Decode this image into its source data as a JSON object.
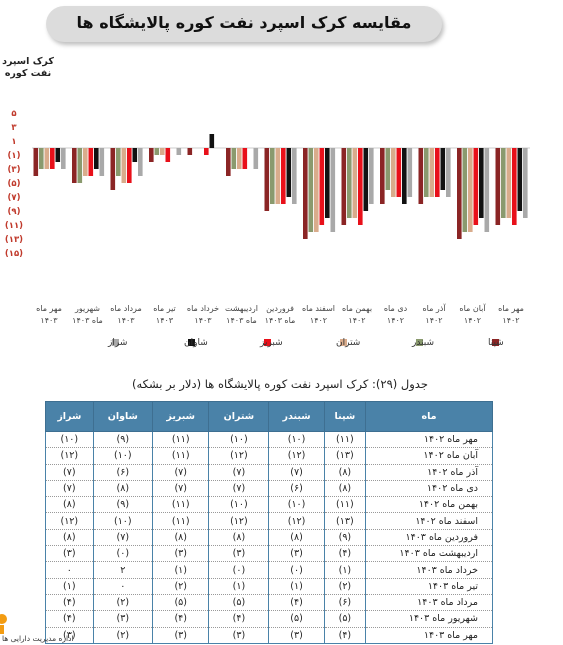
{
  "page_title": "مقایسه کرک اسپرد نفت کوره پالایشگاه ها",
  "chart_data": {
    "type": "bar",
    "ylabel": "کرک اسپرد نفت کوره",
    "ylim": [
      -15,
      5
    ],
    "yticks": [
      5,
      3,
      1,
      -1,
      -3,
      -5,
      -7,
      -9,
      -11,
      -13,
      -15
    ],
    "ytick_labels": [
      "۵",
      "۳",
      "۱",
      "(۱)",
      "(۳)",
      "(۵)",
      "(۷)",
      "(۹)",
      "(۱۱)",
      "(۱۳)",
      "(۱۵)"
    ],
    "categories": [
      "مهر ماه ۱۴۰۲",
      "آبان ماه ۱۴۰۲",
      "آذر ماه ۱۴۰۲",
      "دی ماه ۱۴۰۲",
      "بهمن ماه ۱۴۰۲",
      "اسفند ماه ۱۴۰۲",
      "فروردین ماه ۱۴۰۳",
      "اردیبهشت ماه ۱۴۰۳",
      "خرداد ماه ۱۴۰۳",
      "تیر ماه ۱۴۰۳",
      "مرداد ماه ۱۴۰۳",
      "شهریور ماه ۱۴۰۳",
      "مهر ماه ۱۴۰۳"
    ],
    "category_labels": [
      [
        "مهر ماه",
        "۱۴۰۲"
      ],
      [
        "آبان ماه",
        "۱۴۰۲"
      ],
      [
        "آذر ماه",
        "۱۴۰۲"
      ],
      [
        "دی ماه",
        "۱۴۰۲"
      ],
      [
        "بهمن ماه",
        "۱۴۰۲"
      ],
      [
        "اسفند ماه",
        "۱۴۰۲"
      ],
      [
        "فروردین",
        "ماه ۱۴۰۳"
      ],
      [
        "اردیبهشت",
        "ماه ۱۴۰۳"
      ],
      [
        "خرداد ماه",
        "۱۴۰۳"
      ],
      [
        "تیر ماه",
        "۱۴۰۳"
      ],
      [
        "مرداد ماه",
        "۱۴۰۳"
      ],
      [
        "شهریور",
        "ماه ۱۴۰۳"
      ],
      [
        "مهر ماه",
        "۱۴۰۳"
      ]
    ],
    "series": [
      {
        "name": "شپنا",
        "color": "#8b2525",
        "values": [
          -11,
          -13,
          -8,
          -8,
          -11,
          -13,
          -9,
          -4,
          -1,
          -2,
          -6,
          -5,
          -4
        ]
      },
      {
        "name": "شبندر",
        "color": "#8a9a6e",
        "values": [
          -10,
          -12,
          -7,
          -6,
          -10,
          -12,
          -8,
          -3,
          0,
          -1,
          -4,
          -5,
          -3
        ]
      },
      {
        "name": "شتران",
        "color": "#d9ac8c",
        "values": [
          -10,
          -12,
          -7,
          -7,
          -10,
          -12,
          -8,
          -3,
          0,
          -1,
          -5,
          -4,
          -3
        ]
      },
      {
        "name": "شبریز",
        "color": "#e8101a",
        "values": [
          -11,
          -11,
          -7,
          -7,
          -11,
          -11,
          -8,
          -3,
          -1,
          -2,
          -5,
          -4,
          -3
        ]
      },
      {
        "name": "شاوان",
        "color": "#111111",
        "values": [
          -9,
          -10,
          -6,
          -8,
          -9,
          -10,
          -7,
          0,
          2,
          0,
          -2,
          -3,
          -2
        ]
      },
      {
        "name": "شراز",
        "color": "#a9a9a9",
        "values": [
          -10,
          -12,
          -7,
          -7,
          -8,
          -12,
          -8,
          -3,
          0,
          -1,
          -4,
          -4,
          -3
        ]
      }
    ],
    "legend": "bottom",
    "grid": false
  },
  "table": {
    "caption": "جدول (۲۹): کرک اسپرد نفت کوره پالایشگاه ها (دلار بر بشکه)",
    "headers": [
      "ماه",
      "شپنا",
      "شبندر",
      "شتران",
      "شبریز",
      "شاوان",
      "شراز"
    ],
    "rows": [
      [
        "مهر ماه ۱۴۰۲",
        "(۱۱)",
        "(۱۰)",
        "(۱۰)",
        "(۱۱)",
        "(۹)",
        "(۱۰)"
      ],
      [
        "آبان ماه ۱۴۰۲",
        "(۱۳)",
        "(۱۲)",
        "(۱۲)",
        "(۱۱)",
        "(۱۰)",
        "(۱۲)"
      ],
      [
        "آذر ماه ۱۴۰۲",
        "(۸)",
        "(۷)",
        "(۷)",
        "(۷)",
        "(۶)",
        "(۷)"
      ],
      [
        "دی ماه ۱۴۰۲",
        "(۸)",
        "(۶)",
        "(۷)",
        "(۷)",
        "(۸)",
        "(۷)"
      ],
      [
        "بهمن ماه ۱۴۰۲",
        "(۱۱)",
        "(۱۰)",
        "(۱۰)",
        "(۱۱)",
        "(۹)",
        "(۸)"
      ],
      [
        "اسفند ماه ۱۴۰۲",
        "(۱۳)",
        "(۱۲)",
        "(۱۲)",
        "(۱۱)",
        "(۱۰)",
        "(۱۲)"
      ],
      [
        "فروردین ماه ۱۴۰۳",
        "(۹)",
        "(۸)",
        "(۸)",
        "(۸)",
        "(۷)",
        "(۸)"
      ],
      [
        "اردیبهشت ماه ۱۴۰۳",
        "(۴)",
        "(۳)",
        "(۳)",
        "(۳)",
        "(۰)",
        "(۳)"
      ],
      [
        "خرداد ماه ۱۴۰۳",
        "(۱)",
        "(۰)",
        "(۰)",
        "(۱)",
        "۲",
        "۰"
      ],
      [
        "تیر ماه ۱۴۰۳",
        "(۲)",
        "(۱)",
        "(۱)",
        "(۲)",
        "۰",
        "(۱)"
      ],
      [
        "مرداد ماه ۱۴۰۳",
        "(۶)",
        "(۴)",
        "(۵)",
        "(۵)",
        "(۲)",
        "(۴)"
      ],
      [
        "شهریور ماه ۱۴۰۳",
        "(۵)",
        "(۵)",
        "(۴)",
        "(۴)",
        "(۳)",
        "(۴)"
      ],
      [
        "مهر ماه ۱۴۰۳",
        "(۴)",
        "(۳)",
        "(۳)",
        "(۳)",
        "(۲)",
        "(۳)"
      ]
    ]
  },
  "footer": {
    "text": "اداره مدیریت دارایی ها"
  }
}
